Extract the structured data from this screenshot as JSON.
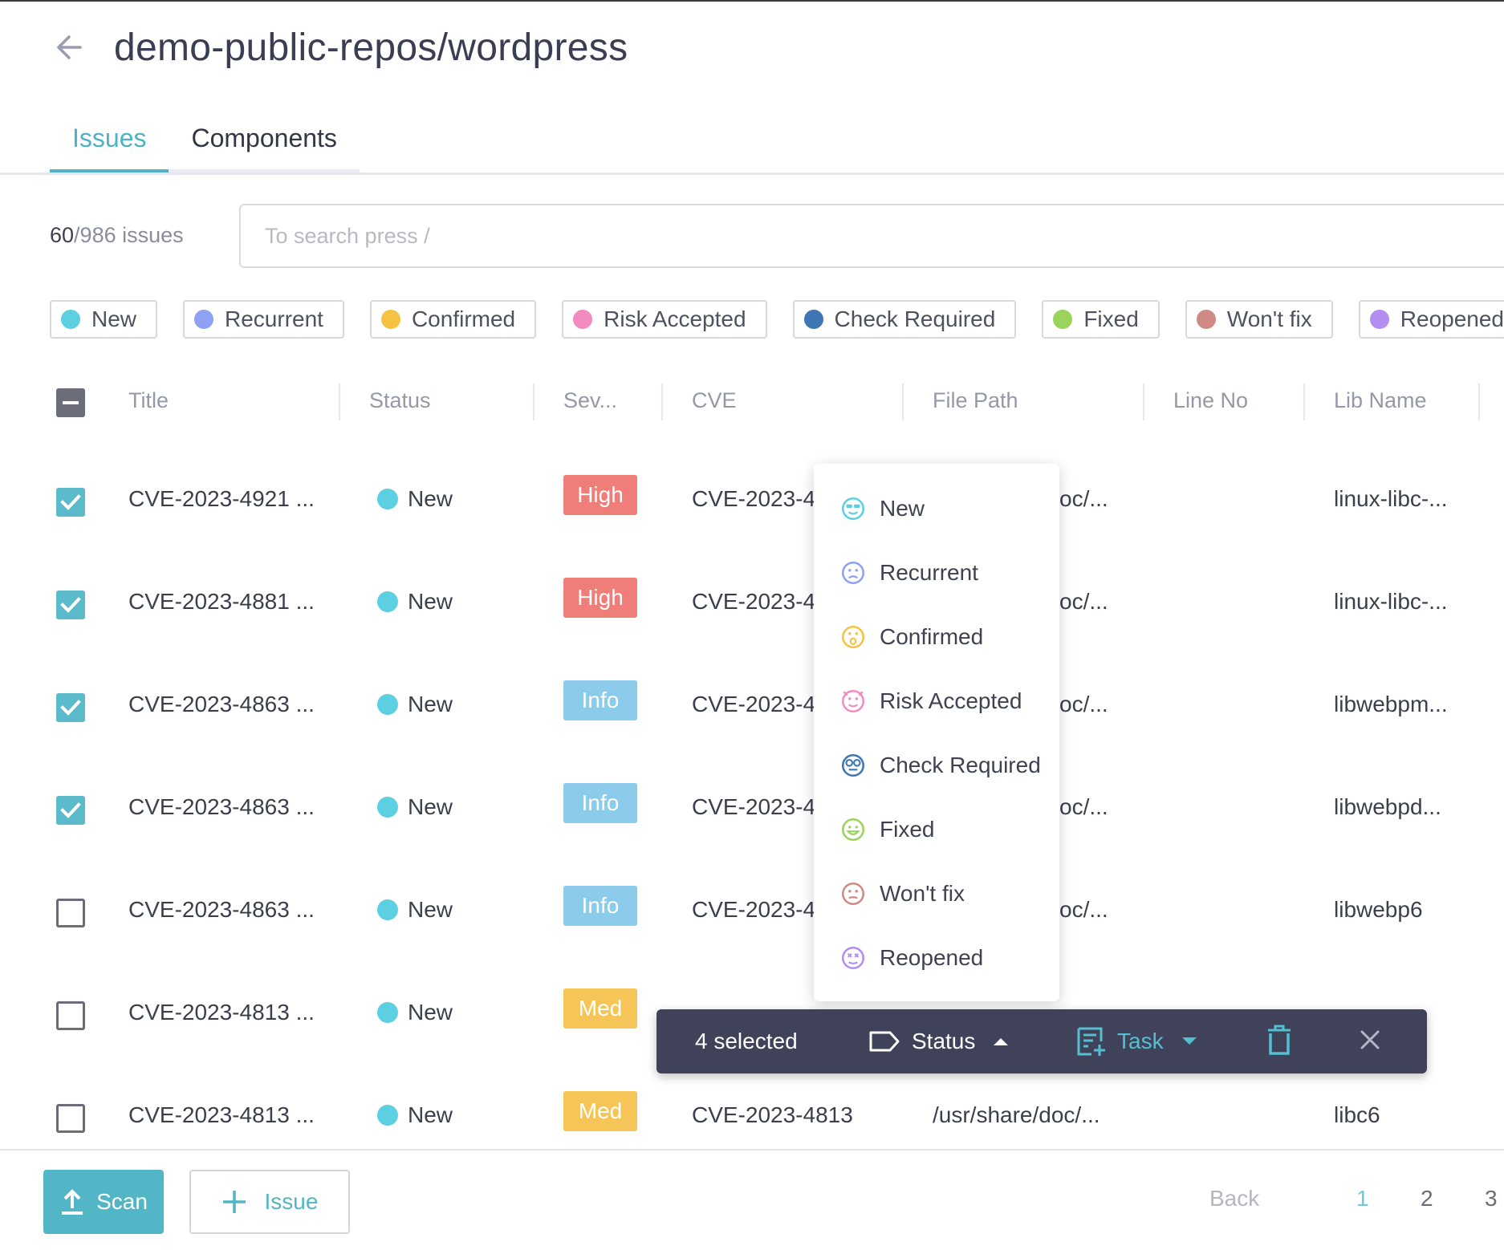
{
  "header": {
    "title": "demo-public-repos/wordpress"
  },
  "tabs": [
    {
      "label": "Issues"
    },
    {
      "label": "Components"
    }
  ],
  "summary": {
    "shown": "60",
    "total": "/986 issues"
  },
  "search": {
    "placeholder": "To search press /"
  },
  "filters": [
    {
      "label": "New",
      "color": "#5ccfe0"
    },
    {
      "label": "Recurrent",
      "color": "#8ea1f2"
    },
    {
      "label": "Confirmed",
      "color": "#f5c242"
    },
    {
      "label": "Risk Accepted",
      "color": "#f28bc0"
    },
    {
      "label": "Check Required",
      "color": "#3f77b5"
    },
    {
      "label": "Fixed",
      "color": "#9bd45a"
    },
    {
      "label": "Won't fix",
      "color": "#cf8a86"
    },
    {
      "label": "Reopened",
      "color": "#b28ef0"
    }
  ],
  "columns": {
    "title": "Title",
    "status": "Status",
    "severity": "Sev...",
    "cve": "CVE",
    "file_path": "File Path",
    "line_no": "Line No",
    "lib_name": "Lib Name"
  },
  "rows": [
    {
      "checked": true,
      "title": "CVE-2023-4921 ...",
      "status": "New",
      "severity": "High",
      "cve": "CVE-2023-49",
      "path": "oc/...",
      "lib": "linux-libc-..."
    },
    {
      "checked": true,
      "title": "CVE-2023-4881 ...",
      "status": "New",
      "severity": "High",
      "cve": "CVE-2023-48",
      "path": "oc/...",
      "lib": "linux-libc-..."
    },
    {
      "checked": true,
      "title": "CVE-2023-4863 ...",
      "status": "New",
      "severity": "Info",
      "cve": "CVE-2023-48",
      "path": "oc/...",
      "lib": "libwebpm..."
    },
    {
      "checked": true,
      "title": "CVE-2023-4863 ...",
      "status": "New",
      "severity": "Info",
      "cve": "CVE-2023-48",
      "path": "oc/...",
      "lib": "libwebpd..."
    },
    {
      "checked": false,
      "title": "CVE-2023-4863 ...",
      "status": "New",
      "severity": "Info",
      "cve": "CVE-2023-48",
      "path": "oc/...",
      "lib": "libwebp6"
    },
    {
      "checked": false,
      "title": "CVE-2023-4813 ...",
      "status": "New",
      "severity": "Med",
      "cve": "",
      "path": "",
      "lib": ""
    },
    {
      "checked": false,
      "title": "CVE-2023-4813 ...",
      "status": "New",
      "severity": "Med",
      "cve": "CVE-2023-4813",
      "path": "/usr/share/doc/...",
      "lib": "libc6"
    }
  ],
  "severity_colors": {
    "High": "#ef7d78",
    "Info": "#8ccbea",
    "Med": "#f5c558"
  },
  "status_menu": [
    {
      "label": "New",
      "icon": "face-cool-icon",
      "color": "#5ccfe0"
    },
    {
      "label": "Recurrent",
      "icon": "face-sad-icon",
      "color": "#8ea1f2"
    },
    {
      "label": "Confirmed",
      "icon": "face-surprised-icon",
      "color": "#f5c242"
    },
    {
      "label": "Risk Accepted",
      "icon": "face-devil-icon",
      "color": "#f28bc0"
    },
    {
      "label": "Check Required",
      "icon": "face-glasses-icon",
      "color": "#3f77b5"
    },
    {
      "label": "Fixed",
      "icon": "face-happy-icon",
      "color": "#9bd45a"
    },
    {
      "label": "Won't fix",
      "icon": "face-neutral-icon",
      "color": "#cf8a86"
    },
    {
      "label": "Reopened",
      "icon": "face-dizzy-icon",
      "color": "#b28ef0"
    }
  ],
  "action_bar": {
    "selected": "4 selected",
    "status": "Status",
    "task": "Task"
  },
  "footer": {
    "scan": "Scan",
    "issue": "Issue",
    "back": "Back",
    "pages": [
      "1",
      "2",
      "3"
    ],
    "current_page": "1"
  }
}
